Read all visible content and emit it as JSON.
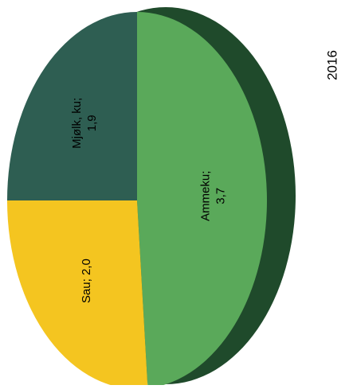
{
  "chart_data": {
    "type": "pie",
    "title": "2016",
    "categories": [
      "Ammeku",
      "Sau",
      "Mjølk, ku"
    ],
    "values": [
      3.7,
      2.0,
      1.9
    ],
    "labels": [
      "Ammeku;\n3,7",
      "Sau;  2,0",
      "Mjølk, ku;\n1,9"
    ],
    "colors": [
      "#5aa95a",
      "#f4c520",
      "#2e5e52"
    ],
    "depth_color": "#1f4a2b",
    "orientation": "rotated 90° counter-clockwise, 3D tilted",
    "legend": "none"
  }
}
